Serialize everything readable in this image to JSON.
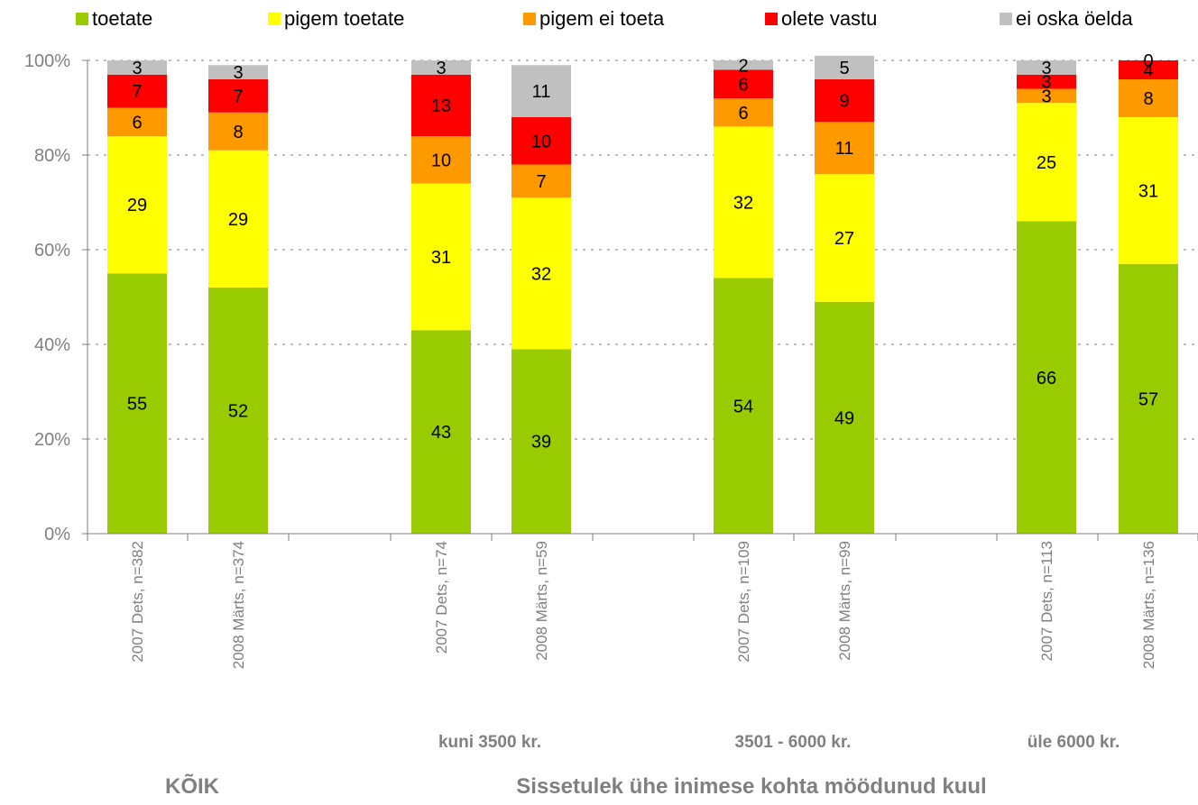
{
  "chart_data": {
    "type": "bar",
    "stacked": true,
    "percent_stacked": true,
    "yticks": [
      "0%",
      "20%",
      "40%",
      "60%",
      "80%",
      "100%"
    ],
    "ylim": [
      0,
      100
    ],
    "grid": "horizontal dotted",
    "legend_position": "top",
    "categories": [
      "2007 Dets, n=382",
      "2008 Märts, n=374",
      "2007 Dets, n=74",
      "2008 Märts, n=59",
      "2007 Dets, n=109",
      "2008 Märts, n=99",
      "2007 Dets, n=113",
      "2008 Märts, n=136"
    ],
    "series": [
      {
        "name": "toetate",
        "color": "#99cc00",
        "values": [
          55,
          52,
          43,
          39,
          54,
          49,
          66,
          57
        ]
      },
      {
        "name": "pigem toetate",
        "color": "#ffff00",
        "values": [
          29,
          29,
          31,
          32,
          32,
          27,
          25,
          31
        ]
      },
      {
        "name": "pigem ei toeta",
        "color": "#ff9900",
        "values": [
          6,
          8,
          10,
          7,
          6,
          11,
          3,
          8
        ]
      },
      {
        "name": "olete vastu",
        "color": "#ff0000",
        "values": [
          7,
          7,
          13,
          10,
          6,
          9,
          3,
          4
        ]
      },
      {
        "name": "ei oska öelda",
        "color": "#c0c0c0",
        "values": [
          3,
          3,
          3,
          11,
          2,
          5,
          3,
          0
        ]
      }
    ],
    "group_labels": [
      {
        "label": "kuni 3500 kr.",
        "categories": [
          2,
          3
        ]
      },
      {
        "label": "3501 - 6000 kr.",
        "categories": [
          4,
          5
        ]
      },
      {
        "label": "üle 6000 kr.",
        "categories": [
          6,
          7
        ]
      }
    ],
    "bottom_labels": [
      "KÕIK",
      "Sissetulek ühe inimese kohta möödunud kuul"
    ]
  }
}
